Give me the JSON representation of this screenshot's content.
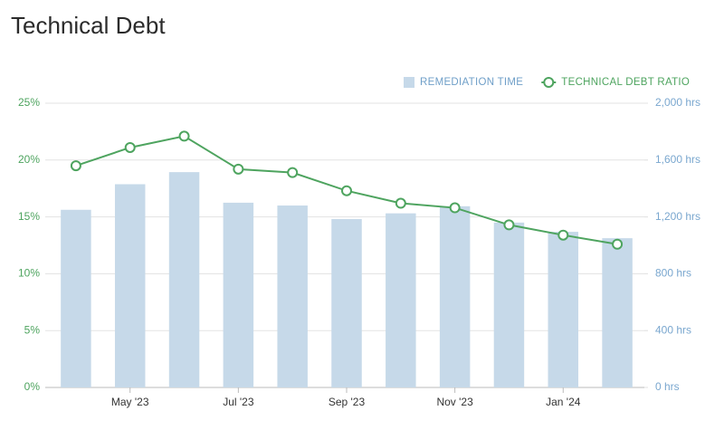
{
  "chart_data": {
    "type": "combo",
    "title": "Technical Debt",
    "categories": [
      null,
      "May '23",
      null,
      "Jul '23",
      null,
      "Sep '23",
      null,
      "Nov '23",
      null,
      "Jan '24",
      null
    ],
    "series": [
      {
        "name": "REMEDIATION TIME",
        "type": "bar",
        "color": "#c6d9e9",
        "axis": "y2",
        "values": [
          1250,
          1430,
          1515,
          1300,
          1280,
          1185,
          1225,
          1275,
          1160,
          1095,
          1050
        ]
      },
      {
        "name": "TECHNICAL DEBT RATIO",
        "type": "line",
        "color": "#4ea45f",
        "values": [
          19.5,
          21.1,
          22.1,
          19.2,
          18.9,
          17.3,
          16.2,
          15.8,
          14.3,
          13.4,
          12.6
        ]
      }
    ],
    "ylim": [
      0,
      25
    ],
    "yticks": [
      {
        "value": 0,
        "label": "0%"
      },
      {
        "value": 5,
        "label": "5%"
      },
      {
        "value": 10,
        "label": "10%"
      },
      {
        "value": 15,
        "label": "15%"
      },
      {
        "value": 20,
        "label": "20%"
      },
      {
        "value": 25,
        "label": "25%"
      }
    ],
    "y2lim": [
      0,
      2000
    ],
    "y2ticks": [
      {
        "value": 0,
        "label": "0 hrs"
      },
      {
        "value": 400,
        "label": "400 hrs"
      },
      {
        "value": 800,
        "label": "800 hrs"
      },
      {
        "value": 1200,
        "label": "1,200 hrs"
      },
      {
        "value": 1600,
        "label": "1,600 hrs"
      },
      {
        "value": 2000,
        "label": "2,000 hrs"
      }
    ],
    "grid": true,
    "legend": "top-right"
  }
}
